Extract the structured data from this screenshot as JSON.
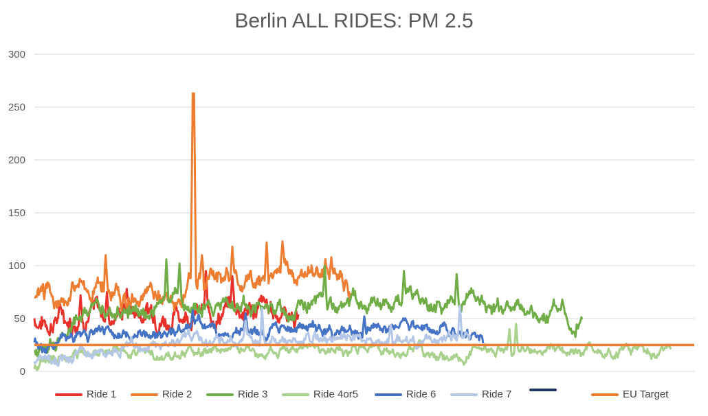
{
  "chart_data": {
    "type": "line",
    "title": "Berlin ALL RIDES: PM 2.5",
    "xlabel": "",
    "ylabel": "",
    "ylim": [
      0,
      300
    ],
    "yticks": [
      0,
      50,
      100,
      150,
      200,
      250,
      300
    ],
    "grid": true,
    "legend_position": "bottom",
    "x_count": 1000,
    "series": [
      {
        "name": "Ride 1",
        "color": "#e8312b",
        "start": 0,
        "end": 400,
        "anchors": [
          [
            0,
            50
          ],
          [
            20,
            45
          ],
          [
            40,
            55
          ],
          [
            60,
            48
          ],
          [
            80,
            60
          ],
          [
            100,
            55
          ],
          [
            120,
            52
          ],
          [
            140,
            62
          ],
          [
            160,
            55
          ],
          [
            180,
            60
          ],
          [
            200,
            50
          ],
          [
            220,
            55
          ],
          [
            240,
            58
          ],
          [
            260,
            52
          ],
          [
            280,
            55
          ],
          [
            300,
            62
          ],
          [
            320,
            58
          ],
          [
            340,
            60
          ],
          [
            360,
            55
          ],
          [
            380,
            58
          ],
          [
            400,
            50
          ]
        ],
        "noise": 14,
        "spikes": [
          [
            70,
            72
          ],
          [
            110,
            75
          ],
          [
            140,
            78
          ],
          [
            260,
            95
          ],
          [
            300,
            90
          ]
        ]
      },
      {
        "name": "Ride 2",
        "color": "#ed7d31",
        "start": 0,
        "end": 480,
        "anchors": [
          [
            0,
            70
          ],
          [
            20,
            75
          ],
          [
            40,
            72
          ],
          [
            60,
            78
          ],
          [
            80,
            75
          ],
          [
            100,
            80
          ],
          [
            120,
            75
          ],
          [
            140,
            72
          ],
          [
            160,
            70
          ],
          [
            180,
            75
          ],
          [
            200,
            68
          ],
          [
            220,
            66
          ],
          [
            240,
            90
          ],
          [
            260,
            80
          ],
          [
            280,
            90
          ],
          [
            300,
            88
          ],
          [
            320,
            85
          ],
          [
            340,
            88
          ],
          [
            360,
            85
          ],
          [
            380,
            100
          ],
          [
            400,
            90
          ],
          [
            420,
            95
          ],
          [
            440,
            92
          ],
          [
            460,
            95
          ],
          [
            480,
            70
          ]
        ],
        "noise": 12,
        "spikes": [
          [
            108,
            110
          ],
          [
            240,
            263
          ],
          [
            242,
            263
          ],
          [
            254,
            110
          ],
          [
            300,
            118
          ],
          [
            352,
            122
          ],
          [
            376,
            123
          ],
          [
            450,
            108
          ]
        ]
      },
      {
        "name": "Ride 3",
        "color": "#70ad47",
        "start": 0,
        "end": 830,
        "anchors": [
          [
            0,
            15
          ],
          [
            20,
            22
          ],
          [
            40,
            35
          ],
          [
            60,
            48
          ],
          [
            80,
            55
          ],
          [
            100,
            58
          ],
          [
            120,
            55
          ],
          [
            140,
            55
          ],
          [
            160,
            58
          ],
          [
            180,
            60
          ],
          [
            200,
            62
          ],
          [
            220,
            65
          ],
          [
            240,
            62
          ],
          [
            260,
            60
          ],
          [
            280,
            62
          ],
          [
            300,
            65
          ],
          [
            320,
            65
          ],
          [
            340,
            62
          ],
          [
            360,
            60
          ],
          [
            380,
            62
          ],
          [
            400,
            60
          ],
          [
            420,
            62
          ],
          [
            440,
            64
          ],
          [
            460,
            68
          ],
          [
            480,
            70
          ],
          [
            500,
            65
          ],
          [
            520,
            60
          ],
          [
            540,
            60
          ],
          [
            560,
            65
          ],
          [
            580,
            70
          ],
          [
            600,
            62
          ],
          [
            620,
            65
          ],
          [
            640,
            70
          ],
          [
            660,
            72
          ],
          [
            680,
            68
          ],
          [
            700,
            58
          ],
          [
            720,
            60
          ],
          [
            740,
            56
          ],
          [
            760,
            50
          ],
          [
            780,
            55
          ],
          [
            800,
            60
          ],
          [
            820,
            45
          ],
          [
            830,
            48
          ]
        ],
        "noise": 10,
        "spikes": [
          [
            200,
            106
          ],
          [
            220,
            102
          ],
          [
            440,
            100
          ],
          [
            560,
            95
          ],
          [
            640,
            92
          ],
          [
            800,
            68
          ]
        ]
      },
      {
        "name": "Ride 4or5",
        "color": "#a9d18e",
        "start": 0,
        "end": 965,
        "anchors": [
          [
            0,
            5
          ],
          [
            20,
            10
          ],
          [
            40,
            12
          ],
          [
            60,
            14
          ],
          [
            80,
            18
          ],
          [
            100,
            18
          ],
          [
            120,
            20
          ],
          [
            140,
            18
          ],
          [
            160,
            20
          ],
          [
            180,
            15
          ],
          [
            200,
            20
          ],
          [
            220,
            15
          ],
          [
            240,
            18
          ],
          [
            260,
            20
          ],
          [
            280,
            18
          ],
          [
            300,
            20
          ],
          [
            320,
            18
          ],
          [
            340,
            16
          ],
          [
            360,
            20
          ],
          [
            380,
            18
          ],
          [
            400,
            20
          ],
          [
            420,
            22
          ],
          [
            440,
            18
          ],
          [
            460,
            20
          ],
          [
            480,
            18
          ],
          [
            500,
            22
          ],
          [
            520,
            20
          ],
          [
            540,
            18
          ],
          [
            560,
            15
          ],
          [
            580,
            20
          ],
          [
            600,
            18
          ],
          [
            620,
            16
          ],
          [
            640,
            15
          ],
          [
            660,
            18
          ],
          [
            680,
            20
          ],
          [
            700,
            18
          ],
          [
            720,
            22
          ],
          [
            740,
            20
          ],
          [
            760,
            18
          ],
          [
            780,
            22
          ],
          [
            800,
            20
          ],
          [
            820,
            18
          ],
          [
            840,
            22
          ],
          [
            860,
            20
          ],
          [
            880,
            18
          ],
          [
            900,
            22
          ],
          [
            920,
            20
          ],
          [
            940,
            18
          ],
          [
            965,
            18
          ]
        ],
        "noise": 6,
        "spikes": [
          [
            730,
            45
          ],
          [
            720,
            40
          ]
        ]
      },
      {
        "name": "Ride 6",
        "color": "#4472c4",
        "start": 0,
        "end": 680,
        "anchors": [
          [
            0,
            28
          ],
          [
            20,
            22
          ],
          [
            40,
            30
          ],
          [
            60,
            32
          ],
          [
            80,
            33
          ],
          [
            100,
            36
          ],
          [
            120,
            38
          ],
          [
            140,
            35
          ],
          [
            160,
            36
          ],
          [
            180,
            35
          ],
          [
            200,
            38
          ],
          [
            220,
            40
          ],
          [
            240,
            45
          ],
          [
            260,
            42
          ],
          [
            280,
            40
          ],
          [
            300,
            38
          ],
          [
            320,
            40
          ],
          [
            340,
            38
          ],
          [
            360,
            40
          ],
          [
            380,
            42
          ],
          [
            400,
            42
          ],
          [
            420,
            40
          ],
          [
            440,
            38
          ],
          [
            460,
            36
          ],
          [
            480,
            36
          ],
          [
            500,
            38
          ],
          [
            520,
            40
          ],
          [
            540,
            38
          ],
          [
            560,
            40
          ],
          [
            580,
            38
          ],
          [
            600,
            38
          ],
          [
            620,
            40
          ],
          [
            640,
            38
          ],
          [
            660,
            35
          ],
          [
            680,
            30
          ]
        ],
        "noise": 7,
        "spikes": [
          [
            240,
            58
          ],
          [
            320,
            55
          ],
          [
            500,
            52
          ]
        ]
      },
      {
        "name": "Ride 7",
        "color": "#b4c7e7",
        "start": 0,
        "end": 660,
        "anchors": [
          [
            0,
            10
          ],
          [
            20,
            12
          ],
          [
            40,
            15
          ],
          [
            60,
            14
          ],
          [
            80,
            18
          ],
          [
            100,
            20
          ],
          [
            120,
            22
          ],
          [
            140,
            24
          ],
          [
            160,
            25
          ],
          [
            180,
            24
          ],
          [
            200,
            26
          ],
          [
            220,
            28
          ],
          [
            240,
            30
          ],
          [
            260,
            28
          ],
          [
            280,
            30
          ],
          [
            300,
            32
          ],
          [
            320,
            30
          ],
          [
            340,
            28
          ],
          [
            360,
            30
          ],
          [
            380,
            30
          ],
          [
            400,
            28
          ],
          [
            420,
            30
          ],
          [
            440,
            32
          ],
          [
            460,
            28
          ],
          [
            480,
            30
          ],
          [
            500,
            28
          ],
          [
            520,
            26
          ],
          [
            540,
            28
          ],
          [
            560,
            30
          ],
          [
            580,
            28
          ],
          [
            600,
            30
          ],
          [
            620,
            28
          ],
          [
            640,
            32
          ],
          [
            660,
            35
          ]
        ],
        "noise": 7,
        "spikes": [
          [
            320,
            48
          ],
          [
            345,
            60
          ],
          [
            540,
            44
          ],
          [
            645,
            62
          ]
        ]
      },
      {
        "name": "",
        "color": "#203864",
        "start": 0,
        "end": 0,
        "anchors": [],
        "noise": 0,
        "spikes": []
      },
      {
        "name": "EU Target",
        "color": "#ed7d31",
        "constant": 25,
        "start": 0,
        "end": 1000
      }
    ]
  }
}
